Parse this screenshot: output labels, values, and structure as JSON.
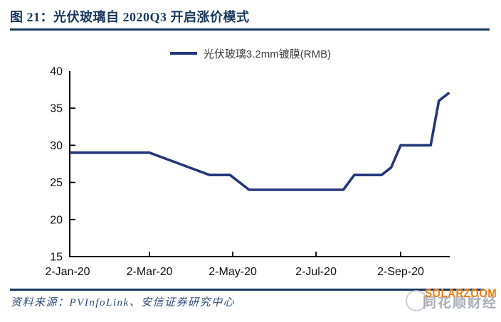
{
  "figure": {
    "title": "图 21：光伏玻璃自 2020Q3 开启涨价模式",
    "source": "资料来源：PVInfoLink、安信证券研究中心"
  },
  "legend": {
    "label": "光伏玻璃3.2mm镀膜(RMB)"
  },
  "watermark": {
    "logo": "round-face-logo",
    "text_cn": "同花顺财经",
    "text_en": "SOLARZOOM"
  },
  "colors": {
    "navy_title": "#17375D",
    "line": "#233778",
    "axis": "#000000",
    "tick_label": "#111111",
    "source_text": "#2E4B7A",
    "watermark_orange": "#F07D12",
    "watermark_gray": "#9aa0aa"
  },
  "chart_data": {
    "type": "line",
    "title": "光伏玻璃自 2020Q3 开启涨价模式",
    "xlabel": "",
    "ylabel": "",
    "ylim": [
      15,
      40
    ],
    "xlim": [
      "2020-01-02",
      "2020-10-08"
    ],
    "grid": false,
    "legend_position": "top",
    "y_ticks": [
      15,
      20,
      25,
      30,
      35,
      40
    ],
    "x_ticks": [
      {
        "label": "2-Jan-20",
        "date": "2020-01-02"
      },
      {
        "label": "2-Mar-20",
        "date": "2020-03-02"
      },
      {
        "label": "2-May-20",
        "date": "2020-05-02"
      },
      {
        "label": "2-Jul-20",
        "date": "2020-07-02"
      },
      {
        "label": "2-Sep-20",
        "date": "2020-09-02"
      }
    ],
    "series": [
      {
        "name": "光伏玻璃3.2mm镀膜(RMB)",
        "points": [
          [
            "2020-01-02",
            29
          ],
          [
            "2020-03-02",
            29
          ],
          [
            "2020-04-15",
            26
          ],
          [
            "2020-04-30",
            26
          ],
          [
            "2020-05-14",
            24
          ],
          [
            "2020-07-22",
            24
          ],
          [
            "2020-07-30",
            26
          ],
          [
            "2020-08-19",
            26
          ],
          [
            "2020-08-26",
            27
          ],
          [
            "2020-09-02",
            30
          ],
          [
            "2020-09-24",
            30
          ],
          [
            "2020-09-30",
            36
          ],
          [
            "2020-10-07",
            37
          ]
        ]
      }
    ]
  }
}
